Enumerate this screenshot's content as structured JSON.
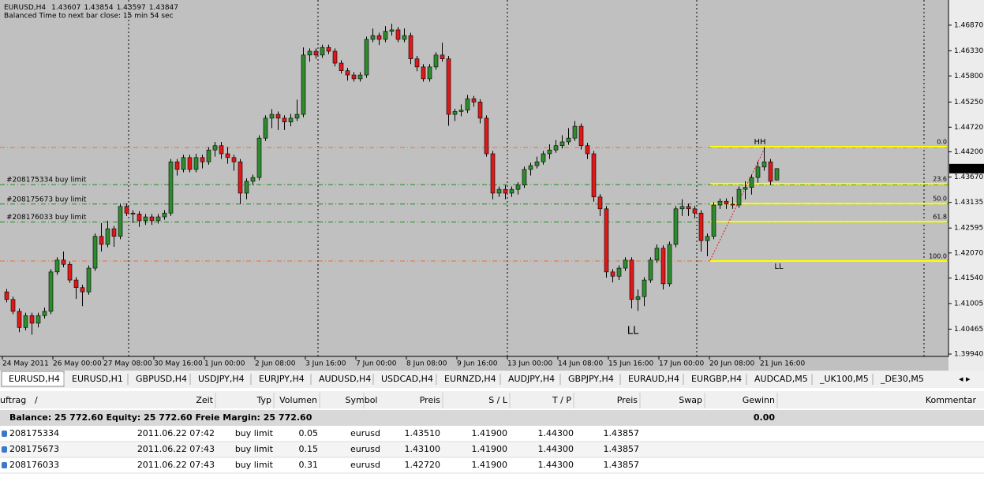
{
  "chart": {
    "type": "candlestick",
    "symbol": "EURUSD,H4",
    "timer": "Balanced Time to next bar close: 15 min 54 sec",
    "ylim": [
      1.3989,
      1.4735
    ],
    "yticks": [
      {
        "value": 1.4687,
        "label": "1.46870"
      },
      {
        "value": 1.4633,
        "label": "1.46330"
      },
      {
        "value": 1.458,
        "label": "1.45800"
      },
      {
        "value": 1.4525,
        "label": "1.45250"
      },
      {
        "value": 1.4472,
        "label": "1.44720"
      },
      {
        "value": 1.442,
        "label": "1.44200"
      },
      {
        "value": 1.4367,
        "label": "1.43670"
      },
      1.43135,
      1.42595,
      {
        "value": 1.4207,
        "label": "1.42070"
      },
      {
        "value": 1.4154,
        "label": "1.41540"
      },
      1.41005,
      1.40465,
      {
        "value": 1.3994,
        "label": "1.39940"
      }
    ],
    "x_labels": [
      "24 May 2011",
      "26 May 00:00",
      "27 May 08:00",
      "30 May 16:00",
      "1 Jun 00:00",
      "2 Jun 08:00",
      "3 Jun 16:00",
      "7 Jun 00:00",
      "8 Jun 08:00",
      "9 Jun 16:00",
      "13 Jun 00:00",
      "14 Jun 08:00",
      "15 Jun 16:00",
      "17 Jun 00:00",
      "20 Jun 08:00",
      "21 Jun 16:00"
    ],
    "colors": {
      "up": "#2e8b2e",
      "down": "#e01818",
      "level": "#e8703a",
      "order": "#1c8c1c",
      "fibo": "#ffff00"
    },
    "candles": [
      [
        1.4125,
        1.4131,
        1.4103,
        1.4109
      ],
      [
        1.4109,
        1.4115,
        1.4078,
        1.4084
      ],
      [
        1.4084,
        1.409,
        1.404,
        1.405
      ],
      [
        1.405,
        1.4081,
        1.4044,
        1.4075
      ],
      [
        1.4075,
        1.4081,
        1.4035,
        1.4059
      ],
      [
        1.4059,
        1.4081,
        1.405,
        1.4075
      ],
      [
        1.4075,
        1.4092,
        1.4069,
        1.4084
      ],
      [
        1.4084,
        1.4173,
        1.4078,
        1.4167
      ],
      [
        1.4167,
        1.4198,
        1.4161,
        1.4192
      ],
      [
        1.4192,
        1.421,
        1.4177,
        1.4183
      ],
      [
        1.4183,
        1.4189,
        1.4144,
        1.415
      ],
      [
        1.415,
        1.4156,
        1.411,
        1.4134
      ],
      [
        1.4134,
        1.414,
        1.4095,
        1.4125
      ],
      [
        1.4125,
        1.4181,
        1.4119,
        1.4175
      ],
      [
        1.4175,
        1.4248,
        1.4169,
        1.4242
      ],
      [
        1.4242,
        1.427,
        1.421,
        1.4225
      ],
      [
        1.4225,
        1.4275,
        1.4219,
        1.4258
      ],
      [
        1.4258,
        1.4264,
        1.422,
        1.4242
      ],
      [
        1.4242,
        1.4311,
        1.4236,
        1.4305
      ],
      [
        1.4305,
        1.4311,
        1.4285,
        1.4291
      ],
      [
        1.4291,
        1.4297,
        1.427,
        1.4289
      ],
      [
        1.4289,
        1.4295,
        1.4262,
        1.4275
      ],
      [
        1.4275,
        1.4289,
        1.4266,
        1.4283
      ],
      [
        1.4283,
        1.4289,
        1.4266,
        1.4275
      ],
      [
        1.4275,
        1.4289,
        1.4269,
        1.4283
      ],
      [
        1.4283,
        1.4297,
        1.4277,
        1.4291
      ],
      [
        1.4291,
        1.4405,
        1.4285,
        1.4399
      ],
      [
        1.4399,
        1.4405,
        1.437,
        1.4383
      ],
      [
        1.4383,
        1.4414,
        1.4377,
        1.4408
      ],
      [
        1.4408,
        1.4414,
        1.4377,
        1.4383
      ],
      [
        1.4383,
        1.4416,
        1.4377,
        1.4408
      ],
      [
        1.4408,
        1.4414,
        1.4385,
        1.4399
      ],
      [
        1.4399,
        1.443,
        1.4393,
        1.4424
      ],
      [
        1.4424,
        1.4441,
        1.441,
        1.4433
      ],
      [
        1.4433,
        1.4441,
        1.4405,
        1.4416
      ],
      [
        1.4416,
        1.443,
        1.4395,
        1.4408
      ],
      [
        1.4408,
        1.4414,
        1.438,
        1.4399
      ],
      [
        1.4399,
        1.4405,
        1.431,
        1.4333
      ],
      [
        1.4333,
        1.4364,
        1.432,
        1.4358
      ],
      [
        1.4358,
        1.4372,
        1.435,
        1.4366
      ],
      [
        1.4366,
        1.4455,
        1.436,
        1.4449
      ],
      [
        1.4449,
        1.4497,
        1.4443,
        1.4491
      ],
      [
        1.4491,
        1.451,
        1.447,
        1.4499
      ],
      [
        1.4499,
        1.4505,
        1.4466,
        1.4491
      ],
      [
        1.4491,
        1.4497,
        1.4466,
        1.4483
      ],
      [
        1.4483,
        1.45,
        1.4474,
        1.4491
      ],
      [
        1.4491,
        1.453,
        1.4485,
        1.4499
      ],
      [
        1.4499,
        1.464,
        1.4493,
        1.4624
      ],
      [
        1.4624,
        1.4638,
        1.461,
        1.4632
      ],
      [
        1.4632,
        1.4638,
        1.4616,
        1.4624
      ],
      [
        1.4624,
        1.4646,
        1.4618,
        1.464
      ],
      [
        1.464,
        1.4646,
        1.4626,
        1.4632
      ],
      [
        1.4632,
        1.4638,
        1.46,
        1.4607
      ],
      [
        1.4607,
        1.4613,
        1.4585,
        1.4591
      ],
      [
        1.4591,
        1.4597,
        1.457,
        1.4582
      ],
      [
        1.4582,
        1.4588,
        1.4568,
        1.4574
      ],
      [
        1.4574,
        1.4588,
        1.4568,
        1.4582
      ],
      [
        1.4582,
        1.4663,
        1.4576,
        1.4657
      ],
      [
        1.4657,
        1.468,
        1.4651,
        1.4665
      ],
      [
        1.4665,
        1.4671,
        1.4645,
        1.4657
      ],
      [
        1.4657,
        1.4685,
        1.4651,
        1.4674
      ],
      [
        1.4674,
        1.469,
        1.4665,
        1.4677
      ],
      [
        1.4677,
        1.4683,
        1.4651,
        1.4657
      ],
      [
        1.4657,
        1.468,
        1.4651,
        1.4665
      ],
      [
        1.4665,
        1.4671,
        1.4605,
        1.4616
      ],
      [
        1.4616,
        1.4622,
        1.459,
        1.4599
      ],
      [
        1.4599,
        1.4605,
        1.4568,
        1.4574
      ],
      [
        1.4574,
        1.4605,
        1.4568,
        1.4599
      ],
      [
        1.4599,
        1.463,
        1.4593,
        1.4624
      ],
      [
        1.4624,
        1.465,
        1.461,
        1.4616
      ],
      [
        1.4616,
        1.4622,
        1.4475,
        1.4499
      ],
      [
        1.4499,
        1.4511,
        1.4485,
        1.4505
      ],
      [
        1.4505,
        1.452,
        1.4495,
        1.4508
      ],
      [
        1.4508,
        1.454,
        1.4502,
        1.4532
      ],
      [
        1.4532,
        1.4538,
        1.4515,
        1.4525
      ],
      [
        1.4525,
        1.4531,
        1.448,
        1.4491
      ],
      [
        1.4491,
        1.4497,
        1.441,
        1.4416
      ],
      [
        1.4416,
        1.4422,
        1.432,
        1.4333
      ],
      [
        1.4333,
        1.4347,
        1.4325,
        1.4341
      ],
      [
        1.4341,
        1.435,
        1.432,
        1.4333
      ],
      [
        1.4333,
        1.4347,
        1.4325,
        1.4341
      ],
      [
        1.4341,
        1.4356,
        1.433,
        1.435
      ],
      [
        1.435,
        1.4389,
        1.4344,
        1.4383
      ],
      [
        1.4383,
        1.4397,
        1.437,
        1.4391
      ],
      [
        1.4391,
        1.441,
        1.4385,
        1.4399
      ],
      [
        1.4399,
        1.4422,
        1.4393,
        1.4416
      ],
      [
        1.4416,
        1.4436,
        1.4405,
        1.4424
      ],
      [
        1.4424,
        1.4445,
        1.4418,
        1.4433
      ],
      [
        1.4433,
        1.4455,
        1.4427,
        1.4441
      ],
      [
        1.4441,
        1.447,
        1.4435,
        1.4449
      ],
      [
        1.4449,
        1.4485,
        1.4443,
        1.4474
      ],
      [
        1.4474,
        1.448,
        1.4425,
        1.4433
      ],
      [
        1.4433,
        1.4439,
        1.4405,
        1.4416
      ],
      [
        1.4416,
        1.4422,
        1.4315,
        1.4325
      ],
      [
        1.4325,
        1.4331,
        1.4285,
        1.43
      ],
      [
        1.43,
        1.4306,
        1.4155,
        1.4167
      ],
      [
        1.4167,
        1.4173,
        1.4145,
        1.4158
      ],
      [
        1.4158,
        1.4181,
        1.415,
        1.4175
      ],
      [
        1.4175,
        1.4198,
        1.4169,
        1.4192
      ],
      [
        1.4192,
        1.4198,
        1.409,
        1.4109
      ],
      [
        1.4109,
        1.413,
        1.4085,
        1.4115
      ],
      [
        1.4115,
        1.4156,
        1.4095,
        1.415
      ],
      [
        1.415,
        1.4198,
        1.4144,
        1.4192
      ],
      [
        1.4192,
        1.4225,
        1.4186,
        1.4217
      ],
      [
        1.4217,
        1.4223,
        1.413,
        1.4142
      ],
      [
        1.4142,
        1.4231,
        1.4136,
        1.4225
      ],
      [
        1.4225,
        1.4306,
        1.4219,
        1.43
      ],
      [
        1.43,
        1.432,
        1.4285,
        1.4305
      ],
      [
        1.4305,
        1.4311,
        1.4285,
        1.43
      ],
      [
        1.43,
        1.4306,
        1.428,
        1.4291
      ],
      [
        1.4291,
        1.4297,
        1.421,
        1.4233
      ],
      [
        1.4233,
        1.4248,
        1.42,
        1.4242
      ],
      [
        1.4242,
        1.4314,
        1.4236,
        1.4308
      ],
      [
        1.4308,
        1.4322,
        1.43,
        1.4316
      ],
      [
        1.4316,
        1.4322,
        1.43,
        1.431
      ],
      [
        1.431,
        1.4325,
        1.43,
        1.4308
      ],
      [
        1.4308,
        1.4347,
        1.4302,
        1.4341
      ],
      [
        1.4341,
        1.4358,
        1.432,
        1.4345
      ],
      [
        1.4345,
        1.4372,
        1.433,
        1.4366
      ],
      [
        1.4366,
        1.44,
        1.4355,
        1.4388
      ],
      [
        1.4388,
        1.443,
        1.438,
        1.4399
      ],
      [
        1.4399,
        1.4405,
        1.435,
        1.4358
      ],
      [
        1.43607,
        1.43854,
        1.43597,
        1.43847
      ]
    ],
    "levels": [
      1.4429,
      1.419
    ],
    "order_labels": [
      "#208175334 buy limit",
      "#208175673 buy limit",
      "#208176033 buy limit"
    ],
    "fibo": {
      "levels": [
        1.4431,
        1.4353,
        1.4311,
        1.4273,
        1.419
      ],
      "labels": [
        "0.0",
        "23.6",
        "50.0",
        "61.8",
        "100.0"
      ]
    },
    "annotations": [
      "HH",
      "LL",
      "LL"
    ]
  },
  "tabs": [
    "EURUSD,H4",
    "EURUSD,H1",
    "GBPUSD,H4",
    "USDJPY,H4",
    "EURJPY,H4",
    "AUDUSD,H4",
    "USDCAD,H4",
    "EURNZD,H4",
    "AUDJPY,H4",
    "GBPJPY,H4",
    "EURAUD,H4",
    "EURGBP,H4",
    "AUDCAD,M5",
    "_UK100,M5",
    "_DE30,M5"
  ],
  "table": {
    "header": [
      "uftrag",
      "/",
      "Zeit",
      "Typ",
      "Volumen",
      "Symbol",
      "Preis",
      "S / L",
      "T / P",
      "Preis",
      "Swap",
      "Gewinn",
      "Kommentar"
    ],
    "balance": "Balance: 25 772.60  Equity: 25 772.60  Freie Margin: 25 772.60",
    "balance_profit": "0.00",
    "rows": [
      [
        "208175334",
        "2011.06.22 07:42",
        "buy limit",
        "0.05",
        "eurusd",
        "1.43510",
        "1.41900",
        "1.44300",
        "1.43857"
      ],
      [
        "208175673",
        "2011.06.22 07:43",
        "buy limit",
        "0.15",
        "eurusd",
        "1.43100",
        "1.41900",
        "1.44300",
        "1.43857"
      ],
      [
        "208176033",
        "2011.06.22 07:43",
        "buy limit",
        "0.31",
        "eurusd",
        "1.42720",
        "1.41900",
        "1.44300",
        "1.43857"
      ]
    ]
  }
}
